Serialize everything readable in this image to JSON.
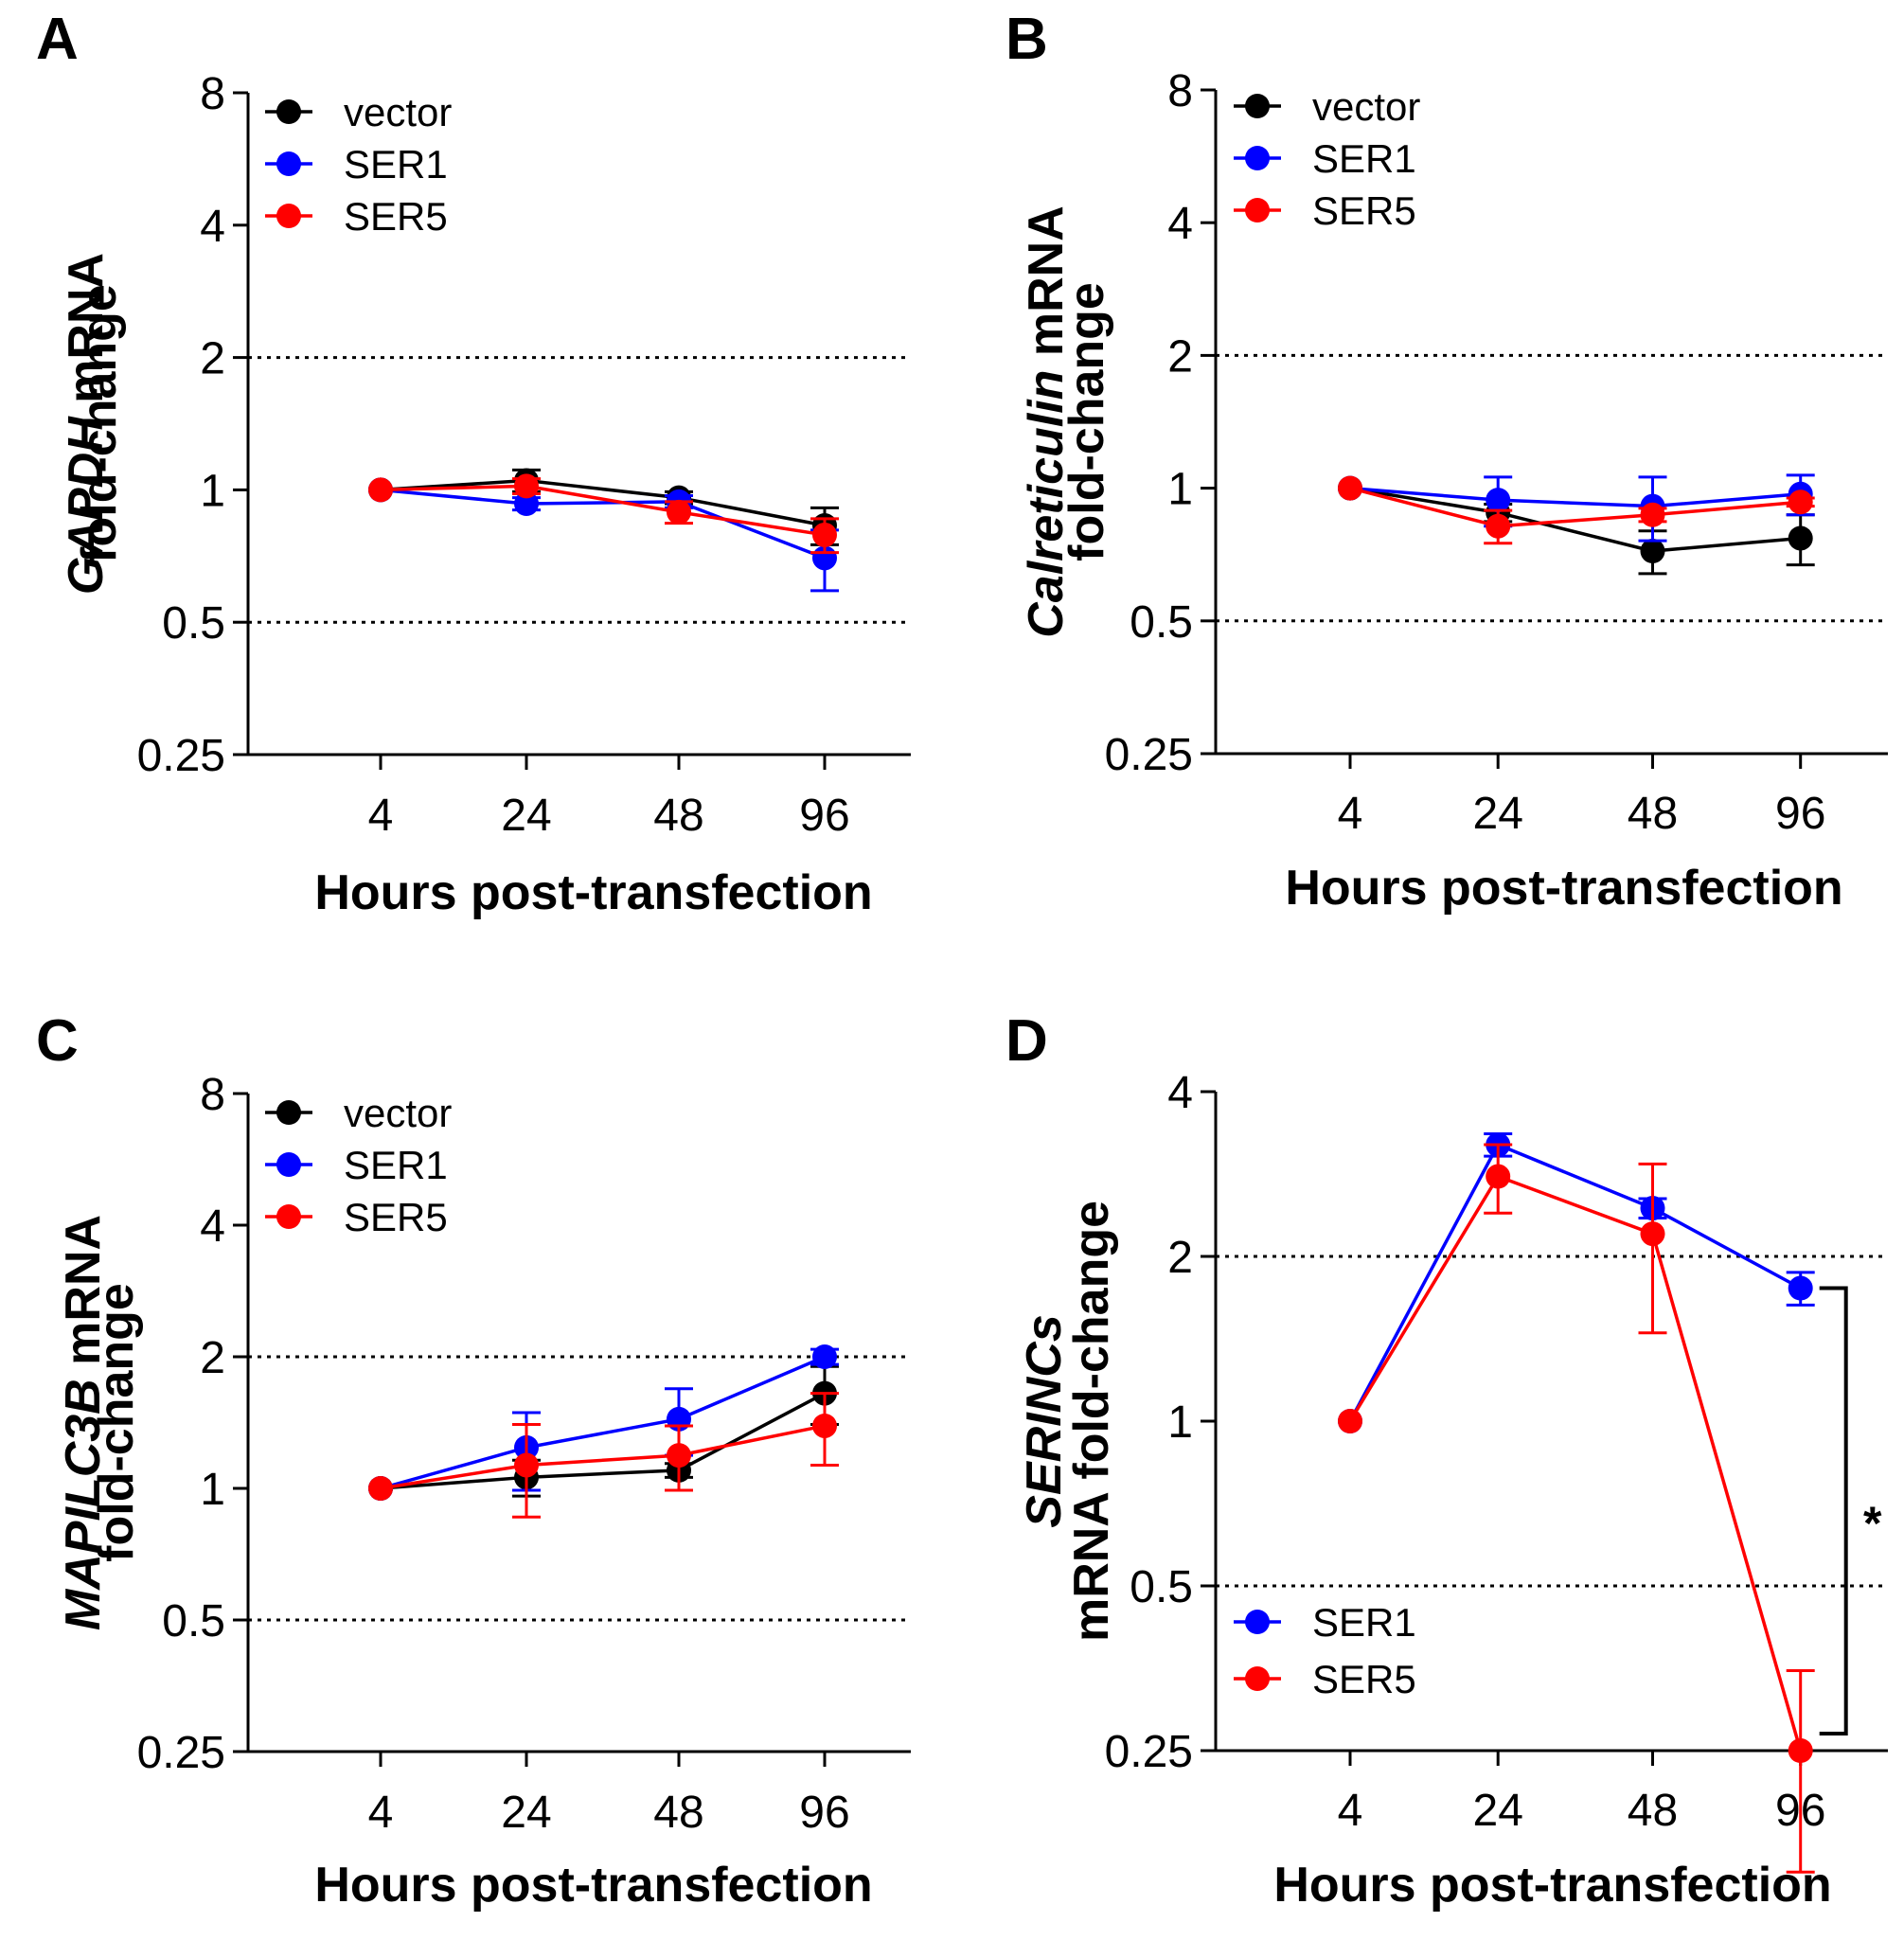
{
  "figure": {
    "panel_count": 4
  },
  "chart_data": [
    {
      "type": "line",
      "panel_letter": "A",
      "title": "",
      "xlabel": "Hours post-transfection",
      "ylabel_italic": "GAPDH",
      "ylabel_rest": " mRNA",
      "ylabel_line2": "fold-change",
      "y_scale": "log2",
      "ylim": [
        0.25,
        8
      ],
      "yticks": [
        0.25,
        0.5,
        1,
        2,
        4,
        8
      ],
      "ytick_labels": [
        "0.25",
        "0.5",
        "1",
        "2",
        "4",
        "8"
      ],
      "reference_lines": [
        0.5,
        2
      ],
      "categories": [
        "4",
        "24",
        "48",
        "96"
      ],
      "legend": [
        "vector",
        "SER1",
        "SER5"
      ],
      "legend_position": "top-left",
      "series": [
        {
          "name": "vector",
          "color": "#000000",
          "values": [
            1.0,
            1.05,
            0.96,
            0.83
          ],
          "errors": [
            0.0,
            0.06,
            0.03,
            0.08
          ]
        },
        {
          "name": "SER1",
          "color": "#0000ff",
          "values": [
            1.0,
            0.93,
            0.94,
            0.7
          ],
          "errors": [
            0.0,
            0.03,
            0.03,
            0.11
          ]
        },
        {
          "name": "SER5",
          "color": "#ff0000",
          "values": [
            1.0,
            1.02,
            0.89,
            0.79
          ],
          "errors": [
            0.0,
            0.04,
            0.05,
            0.07
          ]
        }
      ]
    },
    {
      "type": "line",
      "panel_letter": "B",
      "title": "",
      "xlabel": "Hours post-transfection",
      "ylabel_italic": "Calreticulin",
      "ylabel_rest": " mRNA",
      "ylabel_line2": "fold-change",
      "y_scale": "log2",
      "ylim": [
        0.25,
        8
      ],
      "yticks": [
        0.25,
        0.5,
        1,
        2,
        4,
        8
      ],
      "ytick_labels": [
        "0.25",
        "0.5",
        "1",
        "2",
        "4",
        "8"
      ],
      "reference_lines": [
        0.5,
        2
      ],
      "categories": [
        "4",
        "24",
        "48",
        "96"
      ],
      "legend": [
        "vector",
        "SER1",
        "SER5"
      ],
      "legend_position": "top-left",
      "series": [
        {
          "name": "vector",
          "color": "#000000",
          "values": [
            1.0,
            0.88,
            0.72,
            0.77
          ],
          "errors": [
            0.0,
            0.04,
            0.08,
            0.1
          ]
        },
        {
          "name": "SER1",
          "color": "#0000ff",
          "values": [
            1.0,
            0.94,
            0.91,
            0.97
          ],
          "errors": [
            0.0,
            0.12,
            0.15,
            0.1
          ]
        },
        {
          "name": "SER5",
          "color": "#ff0000",
          "values": [
            1.0,
            0.82,
            0.87,
            0.93
          ],
          "errors": [
            0.0,
            0.07,
            0.03,
            0.02
          ]
        }
      ]
    },
    {
      "type": "line",
      "panel_letter": "C",
      "title": "",
      "xlabel": "Hours post-transfection",
      "ylabel_italic": "MAPILC3B",
      "ylabel_rest": " mRNA",
      "ylabel_line2": "fold-change",
      "y_scale": "log2",
      "ylim": [
        0.25,
        8
      ],
      "yticks": [
        0.25,
        0.5,
        1,
        2,
        4,
        8
      ],
      "ytick_labels": [
        "0.25",
        "0.5",
        "1",
        "2",
        "4",
        "8"
      ],
      "reference_lines": [
        0.5,
        2
      ],
      "categories": [
        "4",
        "24",
        "48",
        "96"
      ],
      "legend": [
        "vector",
        "SER1",
        "SER5"
      ],
      "legend_position": "top-left",
      "series": [
        {
          "name": "vector",
          "color": "#000000",
          "values": [
            1.0,
            1.06,
            1.1,
            1.65
          ],
          "errors": [
            0.0,
            0.1,
            0.04,
            0.25
          ]
        },
        {
          "name": "SER1",
          "color": "#0000ff",
          "values": [
            1.0,
            1.24,
            1.44,
            2.0
          ],
          "errors": [
            0.0,
            0.25,
            0.25,
            0.08
          ]
        },
        {
          "name": "SER5",
          "color": "#ff0000",
          "values": [
            1.0,
            1.13,
            1.19,
            1.39
          ],
          "errors": [
            0.0,
            0.27,
            0.2,
            0.26
          ]
        }
      ]
    },
    {
      "type": "line",
      "panel_letter": "D",
      "title": "",
      "xlabel": "Hours post-transfection",
      "ylabel_italic": "SERINCs",
      "ylabel_rest": "",
      "ylabel_line2": "mRNA fold-change",
      "y_scale": "log2",
      "ylim": [
        0.25,
        4
      ],
      "yticks": [
        0.25,
        0.5,
        1,
        2,
        4
      ],
      "ytick_labels": [
        "0.25",
        "0.5",
        "1",
        "2",
        "4"
      ],
      "reference_lines": [
        0.5,
        2
      ],
      "categories": [
        "4",
        "24",
        "48",
        "96"
      ],
      "legend": [
        "SER1",
        "SER5"
      ],
      "legend_position": "bottom-left",
      "series": [
        {
          "name": "SER1",
          "color": "#0000ff",
          "values": [
            1.0,
            3.2,
            2.45,
            1.75
          ],
          "errors": [
            0.0,
            0.15,
            0.1,
            0.12
          ]
        },
        {
          "name": "SER5",
          "color": "#ff0000",
          "values": [
            1.0,
            2.8,
            2.2,
            0.25
          ],
          "errors": [
            0.0,
            0.4,
            0.75,
            0.1
          ]
        }
      ],
      "significance": {
        "label": "*",
        "between": [
          "SER1",
          "SER5"
        ],
        "at_category": "96"
      }
    }
  ]
}
